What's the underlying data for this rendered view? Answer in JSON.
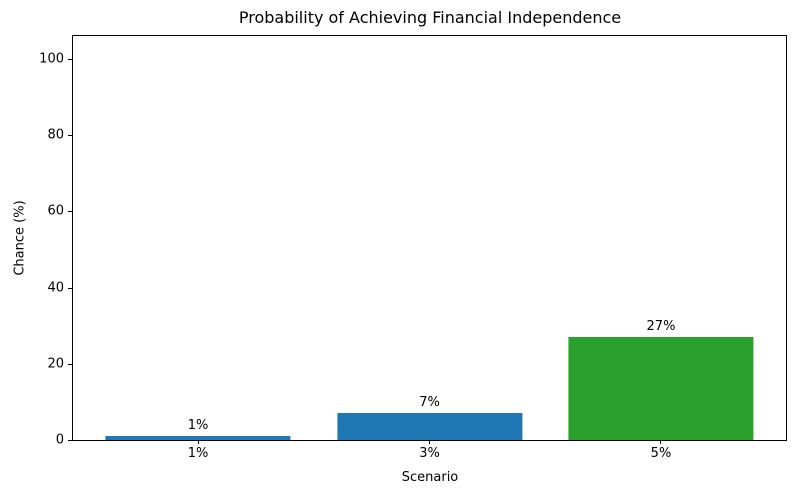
{
  "chart_data": {
    "type": "bar",
    "title": "Probability of Achieving Financial Independence",
    "xlabel": "Scenario",
    "ylabel": "Chance (%)",
    "categories": [
      "1%",
      "3%",
      "5%"
    ],
    "values": [
      1,
      7,
      27
    ],
    "bar_labels": [
      "1%",
      "7%",
      "27%"
    ],
    "bar_colors": [
      "#1f77b4",
      "#1f77b4",
      "#2ca02c"
    ],
    "yticks": [
      0,
      20,
      40,
      60,
      80,
      100
    ],
    "ylim": [
      0,
      106
    ],
    "grid": false,
    "legend_position": "none",
    "spine_color": "#000000",
    "background_color": "#ffffff"
  }
}
